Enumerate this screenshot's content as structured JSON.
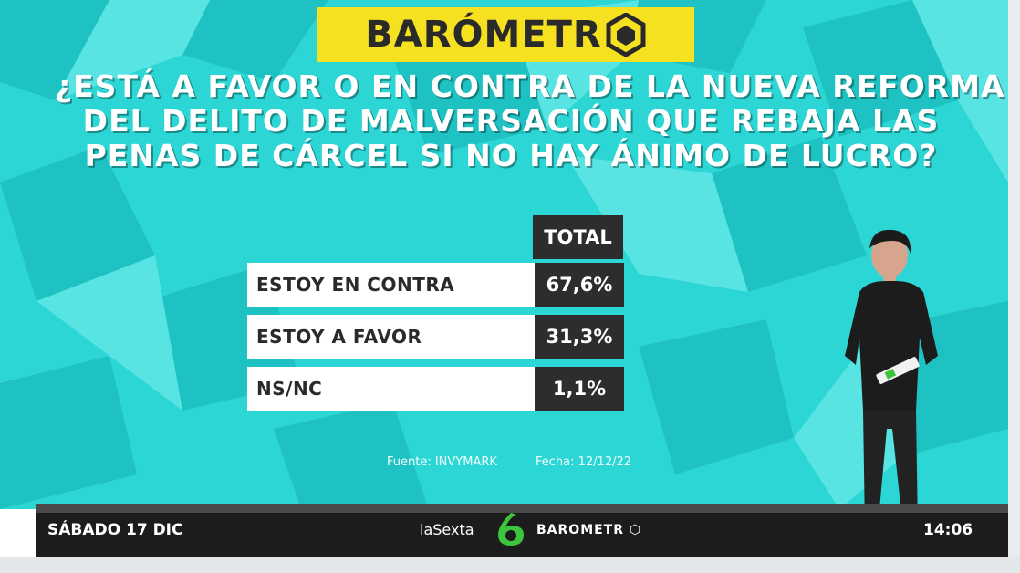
{
  "header": {
    "logo_text": "BARÓMETR",
    "logo_icon": "hexagon-cube-icon"
  },
  "question": {
    "lines": [
      "¿ESTÁ A FAVOR O EN CONTRA DE LA NUEVA REFORMA",
      "DEL DELITO DE MALVERSACIÓN QUE REBAJA LAS",
      "PENAS DE CÁRCEL SI NO HAY ÁNIMO DE LUCRO?"
    ]
  },
  "table": {
    "column_header": "TOTAL",
    "rows": [
      {
        "label": "ESTOY EN CONTRA",
        "value": "67,6%"
      },
      {
        "label": "ESTOY A FAVOR",
        "value": "31,3%"
      },
      {
        "label": "NS/NC",
        "value": "1,1%"
      }
    ]
  },
  "footer": {
    "source": "Fuente: INVYMARK",
    "date": "Fecha: 12/12/22"
  },
  "lower_bar": {
    "date": "SÁBADO 17 DIC",
    "channel": "laSexta",
    "program": "BAROMETR",
    "time": "14:06"
  },
  "colors": {
    "wall": "#2bd6d4",
    "logo_bg": "#f5e11f",
    "value_bg": "#2d2d2d",
    "channel_green": "#3cc43c"
  }
}
